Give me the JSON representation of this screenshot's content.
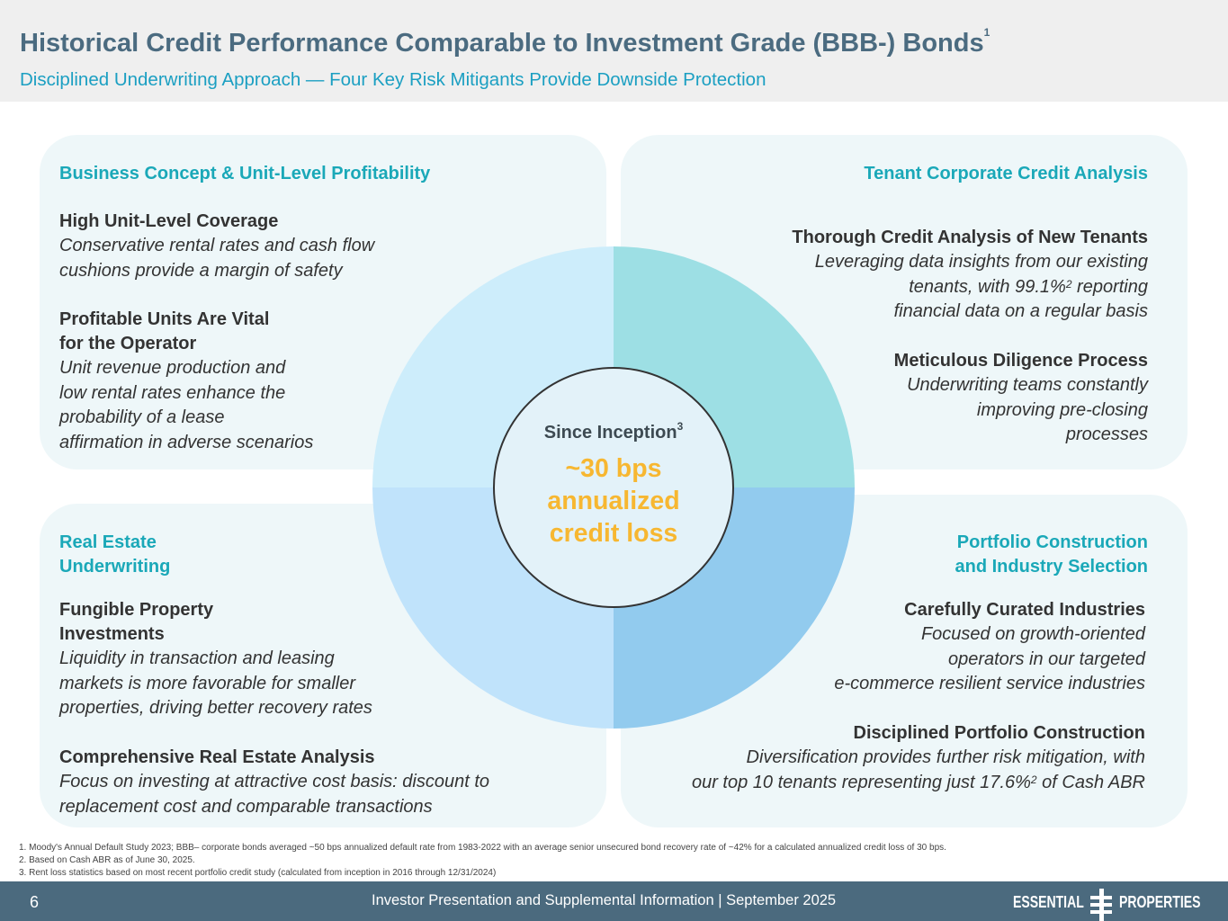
{
  "header": {
    "title": "Historical Credit Performance Comparable to Investment Grade (BBB-) Bonds",
    "title_sup": "1",
    "subtitle": "Disciplined Underwriting Approach — Four Key Risk Mitigants Provide Downside Protection"
  },
  "quadrants": {
    "top_left": {
      "heading": "Business Concept & Unit-Level Profitability",
      "items": [
        {
          "title": "High Unit-Level Coverage",
          "lines": [
            "Conservative rental rates and cash flow",
            "cushions provide a margin of safety"
          ]
        },
        {
          "title_lines": [
            "Profitable Units Are Vital",
            "for the Operator"
          ],
          "lines": [
            "Unit revenue production and",
            "low rental rates enhance the",
            "probability of a lease",
            "affirmation in adverse scenarios"
          ]
        }
      ]
    },
    "top_right": {
      "heading": "Tenant Corporate Credit Analysis",
      "items": [
        {
          "title": "Thorough Credit Analysis of New Tenants",
          "lines": [
            "Leveraging data insights from our existing",
            "tenants, with 99.1%",
            "2",
            " reporting",
            "financial data on a regular basis"
          ]
        },
        {
          "title": "Meticulous Diligence Process",
          "lines": [
            "Underwriting teams constantly",
            "improving pre-closing",
            "processes"
          ]
        }
      ]
    },
    "bottom_left": {
      "heading_lines": [
        "Real Estate",
        "Underwriting"
      ],
      "items": [
        {
          "title_lines": [
            "Fungible Property",
            "Investments"
          ],
          "lines": [
            "Liquidity in transaction and leasing",
            "markets is more favorable for smaller",
            "properties, driving better recovery rates"
          ]
        },
        {
          "title": "Comprehensive Real Estate Analysis",
          "lines": [
            "Focus on investing at attractive cost basis: discount to",
            "replacement cost and comparable transactions"
          ]
        }
      ]
    },
    "bottom_right": {
      "heading_lines": [
        "Portfolio Construction",
        "and Industry Selection"
      ],
      "items": [
        {
          "title": "Carefully Curated Industries",
          "lines": [
            "Focused on growth-oriented",
            "operators in our targeted",
            "e-commerce resilient service industries"
          ]
        },
        {
          "title": "Disciplined Portfolio Construction",
          "lines": [
            "Diversification provides further risk mitigation, with",
            "our top 10 tenants representing just 17.6%",
            "2",
            " of Cash ABR"
          ]
        }
      ]
    }
  },
  "center": {
    "title": "Since Inception",
    "title_sup": "3",
    "value_lines": [
      "~30 bps",
      "annualized",
      "credit loss"
    ]
  },
  "colors": {
    "quadrant_tl": "#cdedfb",
    "quadrant_tr": "#9ddfe4",
    "quadrant_bl": "#c0e3fb",
    "quadrant_br": "#92cbee",
    "accent_orange": "#f7b731",
    "heading_teal": "#1aa8b8"
  },
  "footnotes": [
    "1.  Moody's Annual Default Study 2023; BBB– corporate bonds averaged ~50 bps annualized default rate from 1983-2022 with an average senior unsecured bond recovery rate of ~42% for a calculated annualized credit loss of 30 bps.",
    "2.  Based on Cash ABR as of June 30, 2025.",
    "3.  Rent loss statistics based on most recent portfolio credit study (calculated from inception in 2016 through 12/31/2024)"
  ],
  "footer": {
    "page_number": "6",
    "center_text": "Investor Presentation and Supplemental Information |  September 2025",
    "logo_left": "ESSENTIAL",
    "logo_right": "PROPERTIES"
  }
}
